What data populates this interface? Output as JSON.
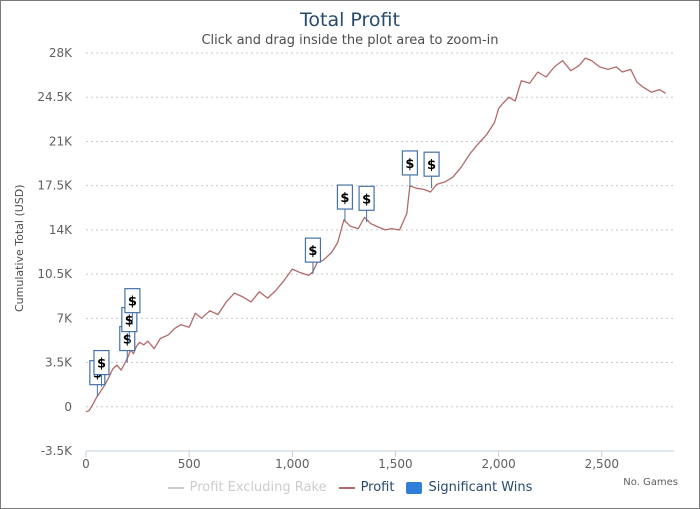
{
  "chart_data": {
    "type": "line",
    "title": "Total Profit",
    "subtitle": "Click and drag inside the plot area to zoom-in",
    "xlabel": "No. Games",
    "ylabel": "Cumulative Total (USD)",
    "xlim": [
      0,
      2850
    ],
    "ylim": [
      -3500,
      28000
    ],
    "x_ticks": [
      0,
      500,
      1000,
      1500,
      2000,
      2500
    ],
    "x_tick_labels": [
      "0",
      "500",
      "1,000",
      "1,500",
      "2,000",
      "2,500"
    ],
    "y_ticks": [
      -3500,
      0,
      3500,
      7000,
      10500,
      14000,
      17500,
      21000,
      24500,
      28000
    ],
    "y_tick_labels": [
      "-3.5K",
      "0",
      "3.5K",
      "7K",
      "10.5K",
      "14K",
      "17.5K",
      "21K",
      "24.5K",
      "28K"
    ],
    "grid": "horizontal dotted",
    "legend_position": "bottom",
    "series": [
      {
        "name": "Profit Excluding Rake",
        "color": "#cccccc",
        "visible": false,
        "x": [],
        "y": []
      },
      {
        "name": "Profit",
        "color": "#b36a6a",
        "x": [
          0,
          15,
          30,
          50,
          70,
          90,
          110,
          130,
          150,
          170,
          190,
          205,
          215,
          230,
          245,
          260,
          280,
          300,
          330,
          360,
          400,
          430,
          460,
          500,
          530,
          560,
          600,
          640,
          680,
          720,
          760,
          800,
          840,
          880,
          920,
          960,
          1000,
          1040,
          1080,
          1100,
          1120,
          1150,
          1190,
          1220,
          1250,
          1280,
          1320,
          1350,
          1380,
          1420,
          1450,
          1480,
          1520,
          1555,
          1570,
          1600,
          1640,
          1670,
          1700,
          1740,
          1780,
          1820,
          1860,
          1900,
          1940,
          1980,
          2000,
          2020,
          2050,
          2080,
          2110,
          2150,
          2190,
          2230,
          2270,
          2310,
          2350,
          2390,
          2420,
          2450,
          2490,
          2530,
          2570,
          2600,
          2640,
          2670,
          2700,
          2740,
          2780,
          2810
        ],
        "y": [
          -400,
          -300,
          100,
          700,
          1200,
          1700,
          2300,
          3000,
          3300,
          2900,
          3500,
          4000,
          4500,
          4200,
          4800,
          5100,
          4900,
          5200,
          4600,
          5400,
          5700,
          6200,
          6500,
          6300,
          7400,
          7000,
          7600,
          7300,
          8300,
          9000,
          8700,
          8300,
          9100,
          8600,
          9200,
          10000,
          10900,
          10600,
          10400,
          10700,
          11400,
          11600,
          12200,
          13000,
          14800,
          14300,
          14100,
          15000,
          14500,
          14200,
          14000,
          14100,
          14000,
          15300,
          17500,
          17300,
          17200,
          17000,
          17600,
          17800,
          18200,
          19000,
          20000,
          20800,
          21500,
          22500,
          23600,
          24000,
          24500,
          24200,
          25800,
          25600,
          26500,
          26100,
          26900,
          27400,
          26600,
          27000,
          27600,
          27400,
          26900,
          26700,
          26900,
          26500,
          26700,
          25700,
          25300,
          24900,
          25100,
          24800
        ]
      },
      {
        "name": "Significant Wins",
        "color": "#4572a7",
        "type": "flags",
        "flag_label": "$",
        "points": [
          {
            "x": 55,
            "y": 800,
            "label": "$"
          },
          {
            "x": 75,
            "y": 1600,
            "label": "$"
          },
          {
            "x": 200,
            "y": 3500,
            "label": "$"
          },
          {
            "x": 210,
            "y": 5000,
            "label": "$"
          },
          {
            "x": 225,
            "y": 6500,
            "label": "$"
          },
          {
            "x": 1100,
            "y": 10500,
            "label": "$"
          },
          {
            "x": 1255,
            "y": 14700,
            "label": "$"
          },
          {
            "x": 1360,
            "y": 14600,
            "label": "$"
          },
          {
            "x": 1570,
            "y": 17400,
            "label": "$"
          },
          {
            "x": 1675,
            "y": 17300,
            "label": "$"
          }
        ]
      }
    ]
  },
  "legend": [
    {
      "label": "Profit Excluding Rake",
      "color": "#cccccc",
      "text_color": "#cccccc",
      "kind": "line"
    },
    {
      "label": "Profit",
      "color": "#b36a6a",
      "text_color": "#274b6d",
      "kind": "line"
    },
    {
      "label": "Significant Wins",
      "color": "#2f7ed8",
      "text_color": "#274b6d",
      "kind": "box"
    }
  ]
}
